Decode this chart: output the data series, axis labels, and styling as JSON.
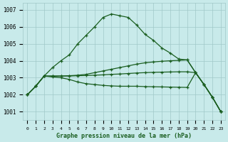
{
  "title": "Graphe pression niveau de la mer (hPa)",
  "background_color": "#c8eaea",
  "grid_color": "#a0c8c8",
  "line_color": "#1a5e20",
  "x_labels": [
    "0",
    "1",
    "2",
    "3",
    "4",
    "5",
    "6",
    "7",
    "8",
    "9",
    "10",
    "11",
    "12",
    "13",
    "14",
    "15",
    "16",
    "17",
    "18",
    "19",
    "20",
    "21",
    "22",
    "23"
  ],
  "ylim": [
    1000.5,
    1007.4
  ],
  "yticks": [
    1001,
    1002,
    1003,
    1004,
    1005,
    1006,
    1007
  ],
  "series1": [
    1002.0,
    1002.5,
    1003.1,
    1003.6,
    1004.0,
    1004.35,
    1005.0,
    1005.5,
    1006.0,
    1006.55,
    1006.75,
    1006.65,
    1006.55,
    1006.1,
    1005.55,
    1005.2,
    1004.75,
    1004.45,
    1004.1,
    1004.05,
    1003.3,
    1002.6,
    1001.85,
    1001.0
  ],
  "series2": [
    1002.0,
    1002.5,
    1003.1,
    1003.1,
    1003.1,
    1003.12,
    1003.15,
    1003.2,
    1003.3,
    1003.4,
    1003.5,
    1003.6,
    1003.7,
    1003.8,
    1003.88,
    1003.93,
    1003.97,
    1004.0,
    1004.02,
    1004.05,
    1003.3,
    1002.6,
    1001.85,
    1001.0
  ],
  "series3": [
    1002.0,
    1002.5,
    1003.1,
    1003.1,
    1003.1,
    1003.1,
    1003.12,
    1003.13,
    1003.15,
    1003.17,
    1003.2,
    1003.22,
    1003.25,
    1003.28,
    1003.3,
    1003.32,
    1003.33,
    1003.34,
    1003.35,
    1003.35,
    1003.3,
    1002.6,
    1001.85,
    1001.0
  ],
  "series4": [
    1002.0,
    1002.5,
    1003.1,
    1003.05,
    1003.0,
    1002.9,
    1002.75,
    1002.65,
    1002.6,
    1002.55,
    1002.52,
    1002.5,
    1002.5,
    1002.5,
    1002.48,
    1002.47,
    1002.46,
    1002.45,
    1002.44,
    1002.43,
    1003.3,
    1002.6,
    1001.85,
    1001.0
  ]
}
